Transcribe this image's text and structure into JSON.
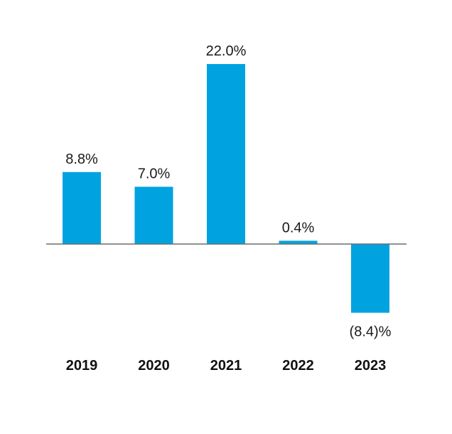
{
  "chart_data": {
    "type": "bar",
    "categories": [
      "2019",
      "2020",
      "2021",
      "2022",
      "2023"
    ],
    "values": [
      8.8,
      7.0,
      22.0,
      0.4,
      -8.4
    ],
    "data_labels": [
      "8.8%",
      "7.0%",
      "22.0%",
      "0.4%",
      "(8.4)%"
    ],
    "ylim": [
      -12,
      26
    ],
    "grid": false,
    "legend": "none",
    "colors": {
      "bar": "#00a3e0",
      "baseline": "#6d6d6d"
    }
  }
}
